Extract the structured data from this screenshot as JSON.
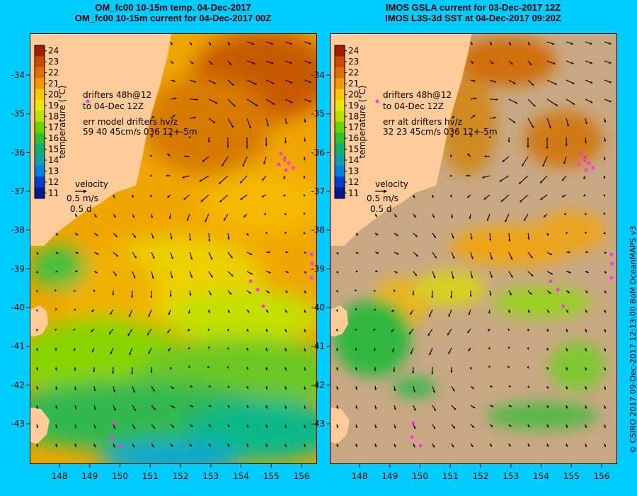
{
  "map_panels": [
    {
      "id": "model",
      "title_line1": "OM_fc00 10-15m temp. 04-Dec-2017",
      "title_line2": "OM_fc00 10-15m current for 04-Dec-2017 00Z",
      "annotation_line1": "drifters 48h@12",
      "annotation_line2": "to 04-Dec 12Z",
      "annotation_line3": "err model drifters hv/z",
      "annotation_line4": "59 40 45cm/s 036 12+-5m",
      "ocean_style": "model temperature field (full coverage)"
    },
    {
      "id": "satellite",
      "title_line1": "IMOS GSLA current for 03-Dec-2017 12Z",
      "title_line2": "IMOS L3S-3d SST at 04-Dec-2017 09:20Z",
      "annotation_line1": "drifters 48h@12",
      "annotation_line2": "to 04-Dec 12Z",
      "annotation_line3": "err alt drifters hv/z",
      "annotation_line4": "32 23 45cm/s 036 12+-5m",
      "ocean_style": "satellite SST with cloud gaps (tan = no data)"
    }
  ],
  "colorbar": {
    "label": "temperature (°C)",
    "ticks": [
      "24",
      "23",
      "22",
      "21",
      "20",
      "19",
      "18",
      "17",
      "16",
      "15",
      "14",
      "13",
      "12",
      "11"
    ],
    "colors": [
      "#a02000",
      "#cc4a00",
      "#e07000",
      "#f09a00",
      "#f8c800",
      "#e8e800",
      "#b8e000",
      "#70d000",
      "#30c030",
      "#10b070",
      "#10a0b0",
      "#0080e0",
      "#0040c8",
      "#001890"
    ]
  },
  "velocity_key": {
    "title": "velocity",
    "speed": "0.5 m/s",
    "duration": "0.5 d"
  },
  "lat_ticks": [
    "-34",
    "-35",
    "-36",
    "-37",
    "-38",
    "-39",
    "-40",
    "-41",
    "-42",
    "-43"
  ],
  "lon_ticks": [
    "148",
    "149",
    "150",
    "151",
    "152",
    "153",
    "154",
    "155",
    "156"
  ],
  "colors": {
    "background": "#00ccff",
    "land": "#ffcc99",
    "nodata": "#c8a883",
    "drifter": "#ff33ff"
  },
  "credit": "© CSIRO 2017  09-Dec-2017 12:13:00 BoM OceanMAPS v3"
}
